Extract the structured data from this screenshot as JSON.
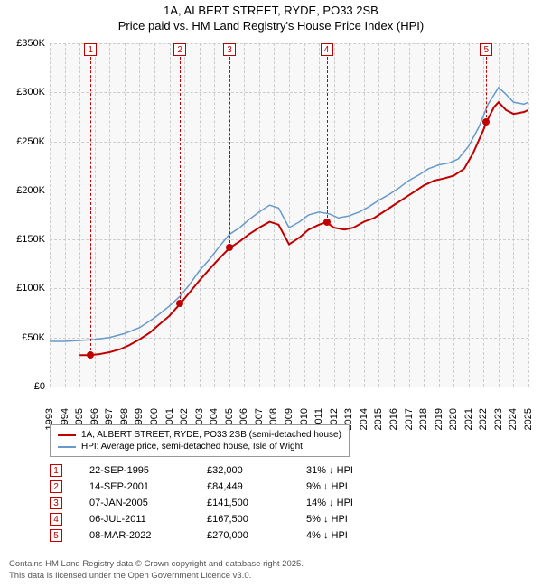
{
  "title_line1": "1A, ALBERT STREET, RYDE, PO33 2SB",
  "title_line2": "Price paid vs. HM Land Registry's House Price Index (HPI)",
  "chart": {
    "type": "line",
    "background_color": "#f8f8f8",
    "grid_color": "#cccccc",
    "ylim": [
      0,
      350000
    ],
    "ytick_step": 50000,
    "yticks": [
      "£0",
      "£50K",
      "£100K",
      "£150K",
      "£200K",
      "£250K",
      "£300K",
      "£350K"
    ],
    "xlim": [
      1993,
      2025
    ],
    "xticks": [
      "1993",
      "1994",
      "1995",
      "1996",
      "1997",
      "1998",
      "1999",
      "2000",
      "2001",
      "2002",
      "2003",
      "2004",
      "2005",
      "2006",
      "2007",
      "2008",
      "2009",
      "2010",
      "2011",
      "2012",
      "2013",
      "2014",
      "2015",
      "2016",
      "2017",
      "2018",
      "2019",
      "2020",
      "2021",
      "2022",
      "2023",
      "2024",
      "2025"
    ],
    "series_red": {
      "label": "1A, ALBERT STREET, RYDE, PO33 2SB (semi-detached house)",
      "color": "#c00000",
      "width": 2,
      "points": [
        [
          1995.0,
          32000
        ],
        [
          1995.7,
          32000
        ],
        [
          1996.3,
          33000
        ],
        [
          1997.0,
          35000
        ],
        [
          1997.7,
          38000
        ],
        [
          1998.3,
          42000
        ],
        [
          1999.0,
          48000
        ],
        [
          1999.7,
          55000
        ],
        [
          2000.3,
          63000
        ],
        [
          2001.0,
          72000
        ],
        [
          2001.7,
          84000
        ],
        [
          2002.3,
          95000
        ],
        [
          2003.0,
          108000
        ],
        [
          2003.7,
          120000
        ],
        [
          2004.3,
          130000
        ],
        [
          2005.0,
          141000
        ],
        [
          2005.7,
          148000
        ],
        [
          2006.3,
          155000
        ],
        [
          2007.0,
          162000
        ],
        [
          2007.7,
          168000
        ],
        [
          2008.3,
          165000
        ],
        [
          2009.0,
          145000
        ],
        [
          2009.7,
          152000
        ],
        [
          2010.3,
          160000
        ],
        [
          2011.0,
          165000
        ],
        [
          2011.5,
          167500
        ],
        [
          2012.0,
          162000
        ],
        [
          2012.7,
          160000
        ],
        [
          2013.3,
          162000
        ],
        [
          2014.0,
          168000
        ],
        [
          2014.7,
          172000
        ],
        [
          2015.3,
          178000
        ],
        [
          2016.0,
          185000
        ],
        [
          2016.7,
          192000
        ],
        [
          2017.3,
          198000
        ],
        [
          2018.0,
          205000
        ],
        [
          2018.7,
          210000
        ],
        [
          2019.3,
          212000
        ],
        [
          2020.0,
          215000
        ],
        [
          2020.7,
          222000
        ],
        [
          2021.3,
          238000
        ],
        [
          2022.0,
          262000
        ],
        [
          2022.2,
          270000
        ],
        [
          2022.7,
          285000
        ],
        [
          2023.0,
          290000
        ],
        [
          2023.5,
          282000
        ],
        [
          2024.0,
          278000
        ],
        [
          2024.7,
          280000
        ],
        [
          2025.0,
          282000
        ]
      ]
    },
    "series_blue": {
      "label": "HPI: Average price, semi-detached house, Isle of Wight",
      "color": "#6699cc",
      "width": 1.5,
      "points": [
        [
          1993.0,
          46000
        ],
        [
          1994.0,
          46000
        ],
        [
          1995.0,
          47000
        ],
        [
          1996.0,
          48000
        ],
        [
          1997.0,
          50000
        ],
        [
          1998.0,
          54000
        ],
        [
          1999.0,
          60000
        ],
        [
          2000.0,
          70000
        ],
        [
          2001.0,
          82000
        ],
        [
          2001.7,
          92000
        ],
        [
          2002.3,
          103000
        ],
        [
          2003.0,
          118000
        ],
        [
          2003.7,
          130000
        ],
        [
          2004.3,
          142000
        ],
        [
          2005.0,
          155000
        ],
        [
          2005.7,
          162000
        ],
        [
          2006.3,
          170000
        ],
        [
          2007.0,
          178000
        ],
        [
          2007.7,
          185000
        ],
        [
          2008.3,
          182000
        ],
        [
          2009.0,
          162000
        ],
        [
          2009.7,
          168000
        ],
        [
          2010.3,
          175000
        ],
        [
          2011.0,
          178000
        ],
        [
          2011.7,
          176000
        ],
        [
          2012.3,
          172000
        ],
        [
          2013.0,
          174000
        ],
        [
          2013.7,
          178000
        ],
        [
          2014.3,
          183000
        ],
        [
          2015.0,
          190000
        ],
        [
          2015.7,
          196000
        ],
        [
          2016.3,
          202000
        ],
        [
          2017.0,
          210000
        ],
        [
          2017.7,
          216000
        ],
        [
          2018.3,
          222000
        ],
        [
          2019.0,
          226000
        ],
        [
          2019.7,
          228000
        ],
        [
          2020.3,
          232000
        ],
        [
          2021.0,
          245000
        ],
        [
          2021.7,
          265000
        ],
        [
          2022.3,
          288000
        ],
        [
          2023.0,
          305000
        ],
        [
          2023.5,
          298000
        ],
        [
          2024.0,
          290000
        ],
        [
          2024.7,
          288000
        ],
        [
          2025.0,
          290000
        ]
      ]
    },
    "markers": [
      {
        "n": "1",
        "year": 1995.73,
        "price": 32000
      },
      {
        "n": "2",
        "year": 2001.7,
        "price": 84449
      },
      {
        "n": "3",
        "year": 2005.02,
        "price": 141500
      },
      {
        "n": "4",
        "year": 2011.51,
        "price": 167500
      },
      {
        "n": "5",
        "year": 2022.18,
        "price": 270000
      }
    ],
    "marker_box_color": "#c00000",
    "marker_dot_color": "#c00000"
  },
  "legend": {
    "row1_color": "#c00000",
    "row1_label": "1A, ALBERT STREET, RYDE, PO33 2SB (semi-detached house)",
    "row2_color": "#6699cc",
    "row2_label": "HPI: Average price, semi-detached house, Isle of Wight"
  },
  "events": [
    {
      "n": "1",
      "date": "22-SEP-1995",
      "price": "£32,000",
      "delta": "31% ↓ HPI"
    },
    {
      "n": "2",
      "date": "14-SEP-2001",
      "price": "£84,449",
      "delta": "9% ↓ HPI"
    },
    {
      "n": "3",
      "date": "07-JAN-2005",
      "price": "£141,500",
      "delta": "14% ↓ HPI"
    },
    {
      "n": "4",
      "date": "06-JUL-2011",
      "price": "£167,500",
      "delta": "5% ↓ HPI"
    },
    {
      "n": "5",
      "date": "08-MAR-2022",
      "price": "£270,000",
      "delta": "4% ↓ HPI"
    }
  ],
  "footer_line1": "Contains HM Land Registry data © Crown copyright and database right 2025.",
  "footer_line2": "This data is licensed under the Open Government Licence v3.0."
}
